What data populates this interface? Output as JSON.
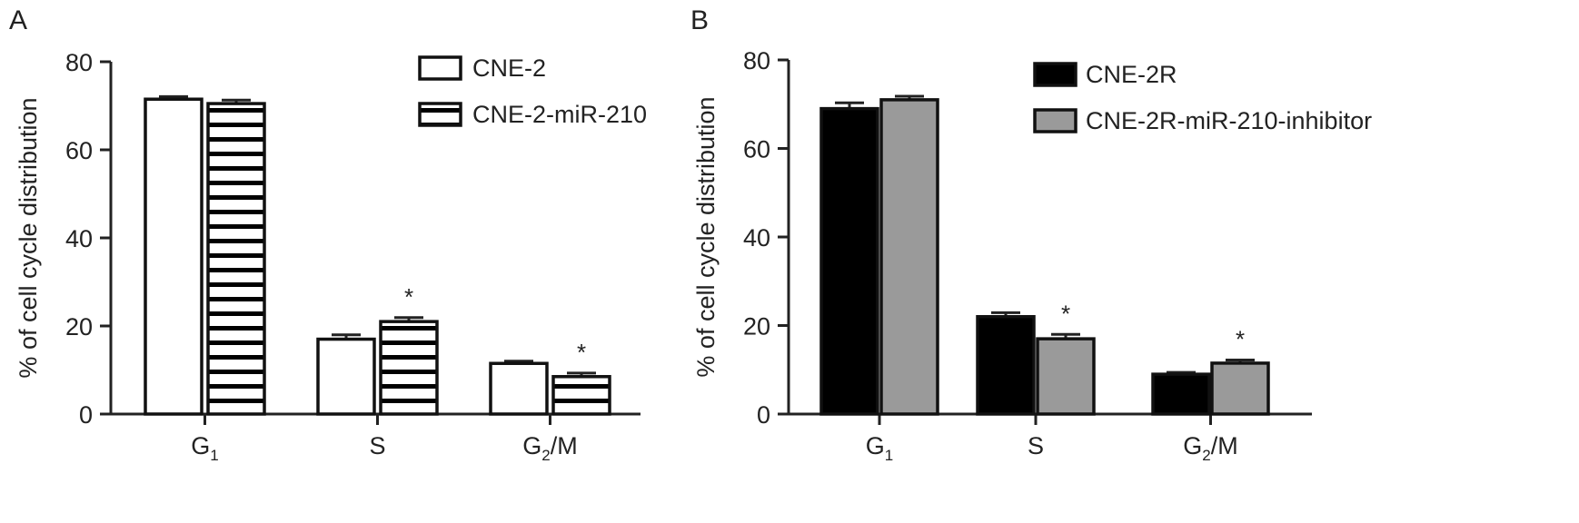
{
  "chart_data": [
    {
      "panel_label": "A",
      "type": "bar",
      "ylabel": "% of cell cycle distribution",
      "ylim": [
        0,
        80
      ],
      "yticks": [
        "0",
        "20",
        "40",
        "60",
        "80"
      ],
      "categories": [
        {
          "base": "G",
          "sub": "1",
          "rest": ""
        },
        {
          "base": "S",
          "sub": "",
          "rest": ""
        },
        {
          "base": "G",
          "sub": "2",
          "rest": "/M"
        }
      ],
      "series": [
        {
          "name": "CNE-2",
          "values": [
            71.5,
            17.0,
            11.5
          ],
          "errors": [
            0.6,
            1.0,
            0.5
          ],
          "fill": "#ffffff",
          "pattern": "none"
        },
        {
          "name": "CNE-2-miR-210",
          "values": [
            70.5,
            21.0,
            8.5
          ],
          "errors": [
            0.8,
            0.9,
            0.8
          ],
          "fill": "#ffffff",
          "pattern": "horizontal-stripes"
        }
      ],
      "significance": [
        {
          "series": 1,
          "category": 1,
          "text": "*"
        },
        {
          "series": 1,
          "category": 2,
          "text": "*"
        }
      ],
      "legend_position": "top-right"
    },
    {
      "panel_label": "B",
      "type": "bar",
      "ylabel": "% of cell cycle distribution",
      "ylim": [
        0,
        80
      ],
      "yticks": [
        "0",
        "20",
        "40",
        "60",
        "80"
      ],
      "categories": [
        {
          "base": "G",
          "sub": "1",
          "rest": ""
        },
        {
          "base": "S",
          "sub": "",
          "rest": ""
        },
        {
          "base": "G",
          "sub": "2",
          "rest": "/M"
        }
      ],
      "series": [
        {
          "name": "CNE-2R",
          "values": [
            69.0,
            22.0,
            9.0
          ],
          "errors": [
            1.3,
            0.9,
            0.4
          ],
          "fill": "#000000",
          "pattern": "none"
        },
        {
          "name": "CNE-2R-miR-210-inhibitor",
          "values": [
            71.0,
            17.0,
            11.5
          ],
          "errors": [
            0.8,
            1.0,
            0.7
          ],
          "fill": "#9a9a9a",
          "pattern": "none"
        }
      ],
      "significance": [
        {
          "series": 1,
          "category": 1,
          "text": "*"
        },
        {
          "series": 1,
          "category": 2,
          "text": "*"
        }
      ],
      "legend_position": "top-right"
    }
  ]
}
